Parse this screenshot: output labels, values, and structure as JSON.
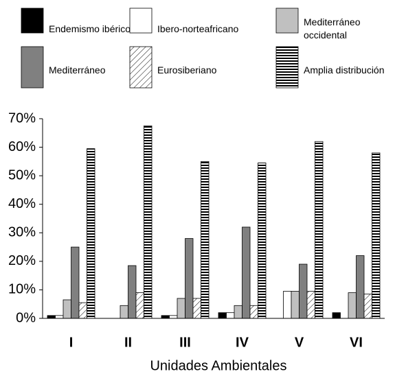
{
  "chart_data": {
    "type": "bar",
    "x_label": "Unidades Ambientales",
    "categories": [
      "I",
      "II",
      "III",
      "IV",
      "V",
      "VI"
    ],
    "series": [
      {
        "name": "Endemismo ibérico",
        "color": "#000000",
        "pattern": "solid",
        "values": [
          1,
          0,
          1,
          2,
          0,
          2
        ]
      },
      {
        "name": "Ibero-norteafricano",
        "color": "#ffffff",
        "pattern": "solid",
        "values": [
          1,
          0,
          1,
          2,
          9.5,
          0
        ]
      },
      {
        "name": "Mediterráneo occidental",
        "color": "#c0c0c0",
        "pattern": "solid",
        "values": [
          6.5,
          4.5,
          7,
          4.5,
          9.5,
          9
        ]
      },
      {
        "name": "Mediterráneo",
        "color": "#808080",
        "pattern": "solid",
        "values": [
          25,
          18.5,
          28,
          32,
          19,
          22
        ]
      },
      {
        "name": "Eurosiberiano",
        "color": "#000000",
        "pattern": "diagonal",
        "values": [
          5.5,
          9,
          7,
          4.5,
          9.5,
          8.5
        ]
      },
      {
        "name": "Amplia distribución",
        "color": "#000000",
        "pattern": "horizontal",
        "values": [
          59.5,
          67.5,
          55,
          54.5,
          62,
          58
        ]
      }
    ],
    "ylim": [
      0,
      70
    ],
    "yticks": [
      {
        "value": 0,
        "label": "0%"
      },
      {
        "value": 10,
        "label": "10%"
      },
      {
        "value": 20,
        "label": "20%"
      },
      {
        "value": 30,
        "label": "30%"
      },
      {
        "value": 40,
        "label": "40%"
      },
      {
        "value": 50,
        "label": "50%"
      },
      {
        "value": 60,
        "label": "60%"
      },
      {
        "value": 70,
        "label": "70%"
      }
    ],
    "grid": false
  }
}
